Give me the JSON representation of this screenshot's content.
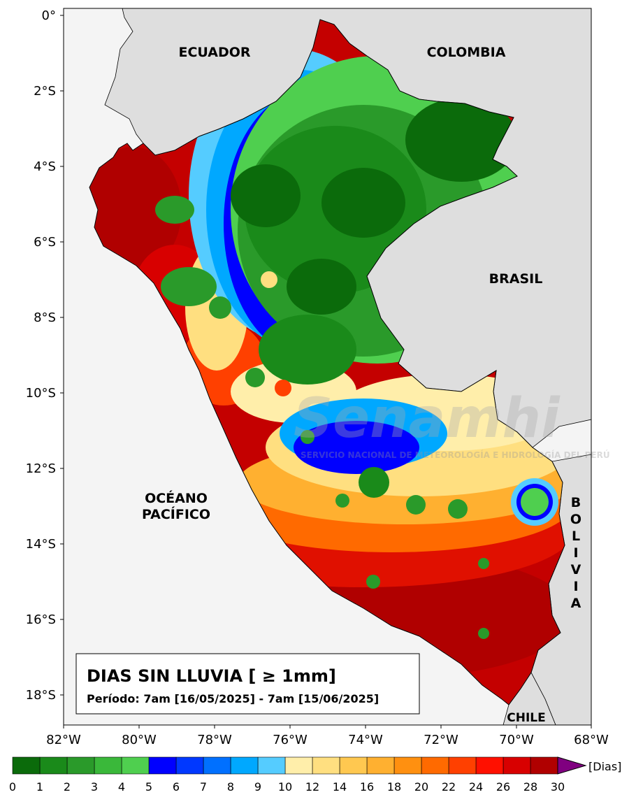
{
  "map": {
    "title": "DIAS SIN LLUVIA [ ≥ 1mm]",
    "period": "Período: 7am [16/05/2025] - 7am [15/06/2025]",
    "watermark": "Senamhi",
    "watermark_sub": "SERVICIO NACIONAL DE METEOROLOGÍA E HIDROLOGÍA DEL PERÚ"
  },
  "axes": {
    "lat_ticks": [
      "0°",
      "2°S",
      "4°S",
      "6°S",
      "8°S",
      "10°S",
      "12°S",
      "14°S",
      "16°S",
      "18°S"
    ],
    "lon_ticks": [
      "82°W",
      "80°W",
      "78°W",
      "76°W",
      "74°W",
      "72°W",
      "70°W",
      "68°W"
    ]
  },
  "labels": {
    "ecuador": "ECUADOR",
    "colombia": "COLOMBIA",
    "brasil": "BRASIL",
    "ocean_line1": "OCÉANO",
    "ocean_line2": "PACÍFICO",
    "bolivia": [
      "B",
      "O",
      "L",
      "I",
      "V",
      "I",
      "A"
    ],
    "chile": "CHILE"
  },
  "colorbar": {
    "unit": "[Dias]",
    "ticks": [
      "0",
      "1",
      "2",
      "3",
      "4",
      "5",
      "6",
      "7",
      "8",
      "9",
      "10",
      "12",
      "14",
      "16",
      "18",
      "20",
      "22",
      "24",
      "26",
      "28",
      "30"
    ],
    "colors": [
      "#0b6b0b",
      "#1a8a1a",
      "#2a9a2a",
      "#3ab83a",
      "#4fcf4f",
      "#0000ff",
      "#0038ff",
      "#0070ff",
      "#00a8ff",
      "#55ccff",
      "#ffeeaa",
      "#ffdf80",
      "#ffc850",
      "#ffb030",
      "#ff9010",
      "#ff6a00",
      "#ff4000",
      "#ff1000",
      "#d80000",
      "#b00000"
    ],
    "extend_color": "#800080"
  },
  "colors": {
    "land": "#dedede",
    "ocean": "#f4f4f4"
  }
}
